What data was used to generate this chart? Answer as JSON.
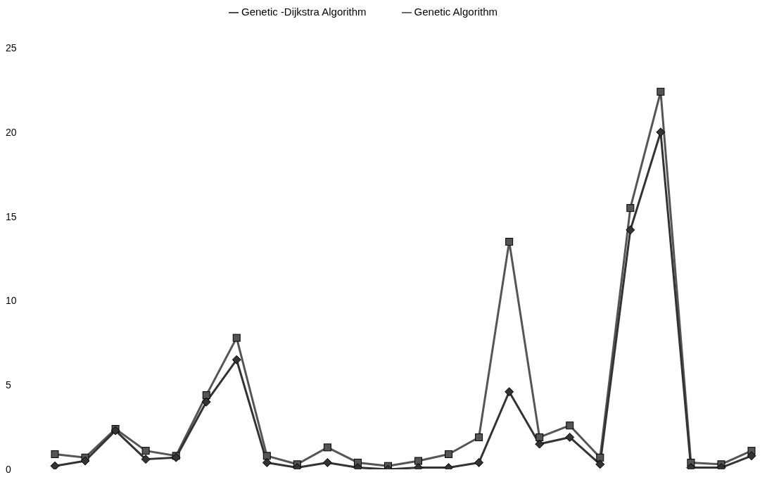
{
  "chart_data": {
    "type": "line",
    "categories": [
      null,
      null,
      null,
      null,
      null,
      null,
      null,
      null,
      null,
      null,
      null,
      null,
      null,
      null,
      null,
      null,
      null,
      null,
      null,
      null,
      null,
      null,
      null,
      null
    ],
    "series": [
      {
        "name": "Genetic -Dijkstra Algorithm",
        "color": "#333333",
        "marker": "diamond",
        "values": [
          0.2,
          0.5,
          2.3,
          0.6,
          0.7,
          4.0,
          6.5,
          0.4,
          0.1,
          0.4,
          0.1,
          0.0,
          0.1,
          0.1,
          0.4,
          4.6,
          1.5,
          1.9,
          0.3,
          14.2,
          20.0,
          0.1,
          0.1,
          0.8
        ]
      },
      {
        "name": "Genetic Algorithm",
        "color": "#555555",
        "marker": "square",
        "values": [
          0.9,
          0.7,
          2.4,
          1.1,
          0.8,
          4.4,
          7.8,
          0.8,
          0.3,
          1.3,
          0.4,
          0.2,
          0.5,
          0.9,
          1.9,
          13.5,
          1.9,
          2.6,
          0.7,
          15.5,
          22.4,
          0.4,
          0.3,
          1.1
        ]
      }
    ],
    "ylim": [
      0,
      25
    ],
    "yticks": [
      0,
      5,
      10,
      15,
      20,
      25
    ],
    "grid": false,
    "legend": "top",
    "line_style": "solid"
  }
}
